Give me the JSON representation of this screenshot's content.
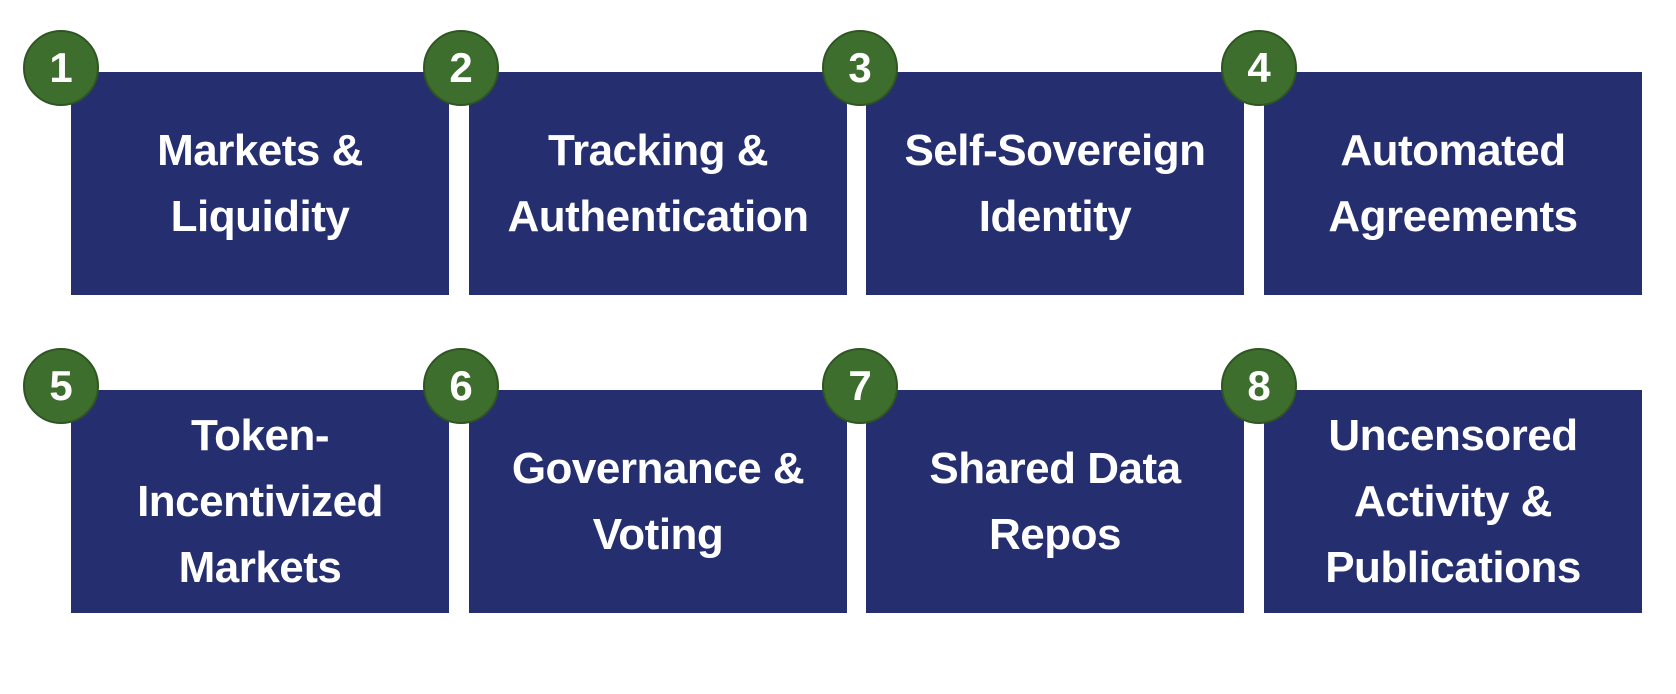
{
  "items": [
    {
      "number": "1",
      "label": "Markets &\nLiquidity"
    },
    {
      "number": "2",
      "label": "Tracking &\nAuthentication"
    },
    {
      "number": "3",
      "label": "Self-Sovereign\nIdentity"
    },
    {
      "number": "4",
      "label": "Automated\nAgreements"
    },
    {
      "number": "5",
      "label": "Token-\nIncentivized\nMarkets"
    },
    {
      "number": "6",
      "label": "Governance &\nVoting"
    },
    {
      "number": "7",
      "label": "Shared Data\nRepos"
    },
    {
      "number": "8",
      "label": "Uncensored\nActivity &\nPublications"
    }
  ],
  "colors": {
    "tile": "#252e6f",
    "badge": "#3e6e2d",
    "text": "#ffffff"
  }
}
